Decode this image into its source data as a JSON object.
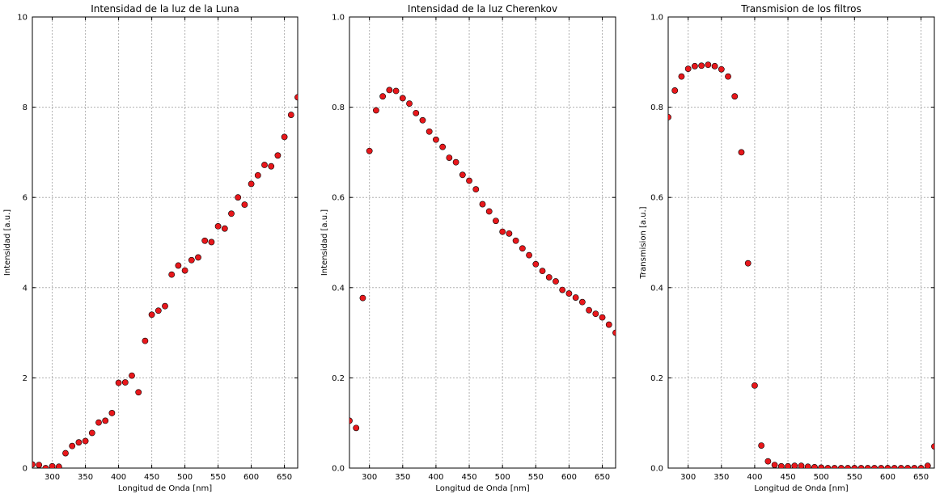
{
  "chart_data": [
    {
      "type": "scatter",
      "title": "Intensidad de la luz de la Luna",
      "xlabel": "Longitud de Onda [nm]",
      "ylabel": "Intensidad [a.u.]",
      "xlim": [
        270,
        670
      ],
      "ylim": [
        0,
        10
      ],
      "xticks": [
        300,
        350,
        400,
        450,
        500,
        550,
        600,
        650
      ],
      "yticks": [
        0,
        2,
        4,
        6,
        8,
        10
      ],
      "grid": true,
      "marker_color": "#e8171b",
      "x": [
        270,
        280,
        290,
        300,
        310,
        320,
        330,
        340,
        350,
        360,
        370,
        380,
        390,
        400,
        410,
        420,
        430,
        440,
        450,
        460,
        470,
        480,
        490,
        500,
        510,
        520,
        530,
        540,
        550,
        560,
        570,
        580,
        590,
        600,
        610,
        620,
        630,
        640,
        650,
        660,
        670
      ],
      "y": [
        0.08,
        0.07,
        0.0,
        0.04,
        0.03,
        0.33,
        0.49,
        0.57,
        0.6,
        0.78,
        1.01,
        1.05,
        1.22,
        1.89,
        1.9,
        2.05,
        1.68,
        2.82,
        3.4,
        3.49,
        3.59,
        4.29,
        4.49,
        4.38,
        4.61,
        4.67,
        5.04,
        5.01,
        5.36,
        5.31,
        5.64,
        6.0,
        5.84,
        6.3,
        6.49,
        6.72,
        6.69,
        6.93,
        7.34,
        7.83,
        8.22
      ]
    },
    {
      "type": "scatter",
      "title": "Intensidad de la luz Cherenkov",
      "xlabel": "Longitud de Onda [nm]",
      "ylabel": "Intensidad [a.u.]",
      "xlim": [
        270,
        670
      ],
      "ylim": [
        0,
        1.0
      ],
      "xticks": [
        300,
        350,
        400,
        450,
        500,
        550,
        600,
        650
      ],
      "yticks": [
        0.0,
        0.2,
        0.4,
        0.6,
        0.8,
        1.0
      ],
      "grid": true,
      "marker_color": "#e8171b",
      "x": [
        270,
        280,
        290,
        300,
        310,
        320,
        330,
        340,
        350,
        360,
        370,
        380,
        390,
        400,
        410,
        420,
        430,
        440,
        450,
        460,
        470,
        480,
        490,
        500,
        510,
        520,
        530,
        540,
        550,
        560,
        570,
        580,
        590,
        600,
        610,
        620,
        630,
        640,
        650,
        660,
        670
      ],
      "y": [
        0.105,
        0.089,
        0.377,
        0.703,
        0.793,
        0.824,
        0.838,
        0.836,
        0.82,
        0.808,
        0.787,
        0.771,
        0.746,
        0.728,
        0.712,
        0.688,
        0.678,
        0.65,
        0.637,
        0.618,
        0.585,
        0.569,
        0.548,
        0.524,
        0.52,
        0.504,
        0.487,
        0.472,
        0.452,
        0.437,
        0.423,
        0.414,
        0.395,
        0.387,
        0.378,
        0.368,
        0.35,
        0.342,
        0.334,
        0.318,
        0.3
      ]
    },
    {
      "type": "scatter",
      "title": "Transmision de los filtros",
      "xlabel": "Longitud de Onda [nm]",
      "ylabel": "Transmision [a.u.]",
      "xlim": [
        270,
        670
      ],
      "ylim": [
        0,
        1.0
      ],
      "xticks": [
        300,
        350,
        400,
        450,
        500,
        550,
        600,
        650
      ],
      "yticks": [
        0.0,
        0.2,
        0.4,
        0.6,
        0.8,
        1.0
      ],
      "grid": true,
      "marker_color": "#e8171b",
      "x": [
        270,
        280,
        290,
        300,
        310,
        320,
        330,
        340,
        350,
        360,
        370,
        380,
        390,
        400,
        410,
        420,
        430,
        440,
        450,
        460,
        470,
        480,
        490,
        500,
        510,
        520,
        530,
        540,
        550,
        560,
        570,
        580,
        590,
        600,
        610,
        620,
        630,
        640,
        650,
        660,
        670
      ],
      "y": [
        0.778,
        0.837,
        0.868,
        0.885,
        0.891,
        0.892,
        0.894,
        0.891,
        0.884,
        0.868,
        0.824,
        0.7,
        0.454,
        0.183,
        0.05,
        0.015,
        0.007,
        0.004,
        0.004,
        0.005,
        0.005,
        0.003,
        0.002,
        0.001,
        0.0,
        0.0,
        0.0,
        0.0,
        0.0,
        0.0,
        0.0,
        0.0,
        0.0,
        0.0,
        0.0,
        0.0,
        0.0,
        0.0,
        0.0,
        0.005,
        0.048
      ]
    }
  ]
}
